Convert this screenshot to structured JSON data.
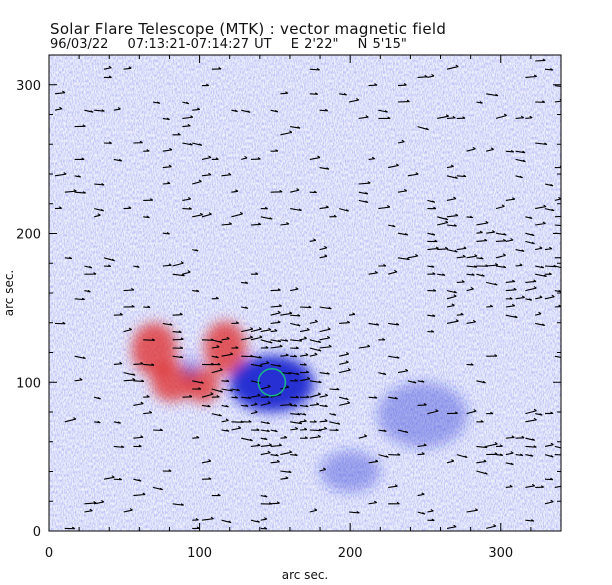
{
  "header": {
    "title": "Solar Flare Telescope (MTK) : vector magnetic field",
    "date": "96/03/22",
    "time_range": "07:13:21-07:14:27 UT",
    "longitude": "E 2'22\"",
    "latitude": "N 5'15\""
  },
  "chart_data": {
    "type": "image-map",
    "title": "Solar Flare Telescope (MTK) : vector magnetic field",
    "xlabel": "arc sec.",
    "ylabel": "arc sec.",
    "xlim": [
      0,
      340
    ],
    "ylim": [
      0,
      320
    ],
    "x_ticks": [
      "0",
      "100",
      "200",
      "300"
    ],
    "y_ticks": [
      "0",
      "100",
      "200",
      "300"
    ],
    "polarity_colors": {
      "positive": "#e03030",
      "negative": "#1c28d0",
      "background": "#b8bcf0"
    },
    "positive_regions": [
      {
        "x": 70,
        "y": 122,
        "rx": 15,
        "ry": 18
      },
      {
        "x": 82,
        "y": 100,
        "rx": 14,
        "ry": 13
      },
      {
        "x": 117,
        "y": 123,
        "rx": 14,
        "ry": 18
      },
      {
        "x": 102,
        "y": 98,
        "rx": 11,
        "ry": 12
      }
    ],
    "negative_regions": [
      {
        "x": 148,
        "y": 99,
        "rx": 28,
        "ry": 19
      },
      {
        "x": 94,
        "y": 110,
        "rx": 6,
        "ry": 8
      },
      {
        "x": 248,
        "y": 78,
        "rx": 30,
        "ry": 22
      },
      {
        "x": 200,
        "y": 40,
        "rx": 20,
        "ry": 14
      }
    ],
    "marker": {
      "type": "circle",
      "x": 148,
      "y": 100,
      "radius": 9,
      "color": "#19b48c"
    }
  }
}
